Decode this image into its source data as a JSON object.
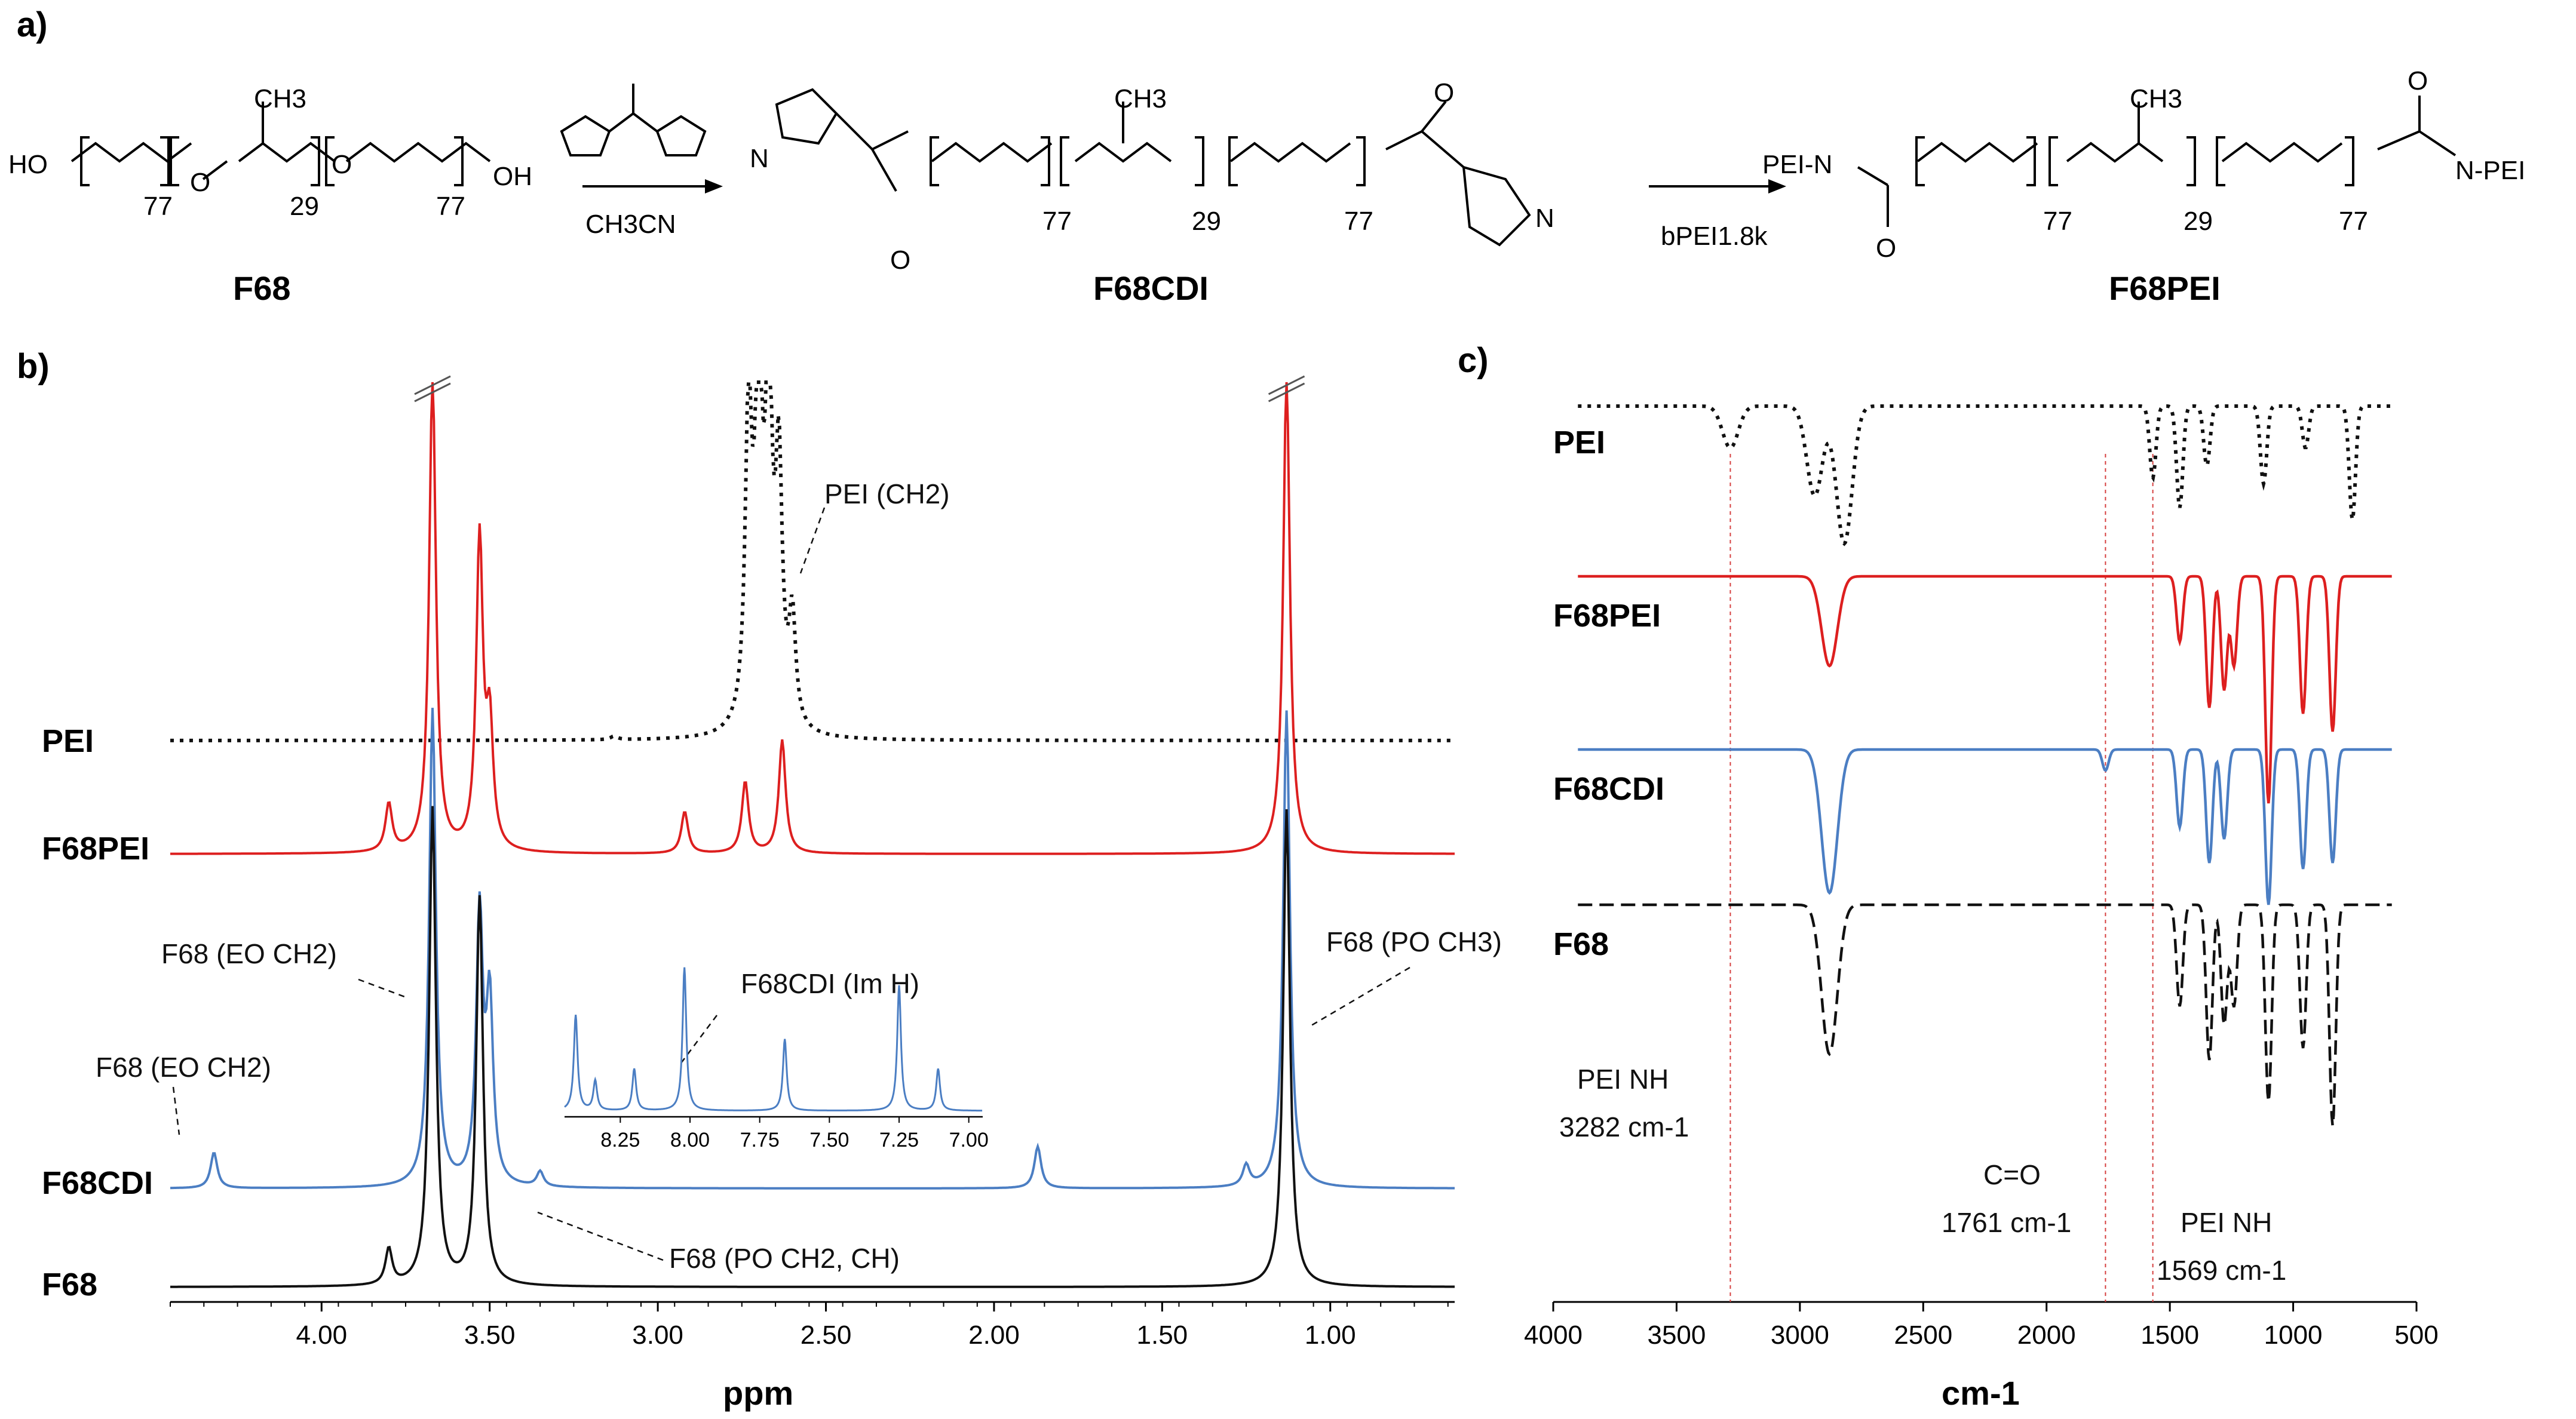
{
  "panels": {
    "a": "a)",
    "b": "b)",
    "c": "c)"
  },
  "scheme": {
    "compounds": [
      "F68",
      "F68CDI",
      "F68PEI"
    ],
    "reagent1": "CH3CN",
    "reagent2": "bPEI1.8k",
    "repeat_eo": "77",
    "repeat_po": "29",
    "groups": {
      "ho": "HO",
      "oh": "OH",
      "pei_n_left": "PEI-N",
      "n_pei_right": "N-PEI",
      "n": "N",
      "o": "O",
      "ch3": "CH3"
    }
  },
  "chart_data": [
    {
      "type": "line",
      "panel": "b",
      "xlabel": "ppm",
      "xlim": [
        4.45,
        0.63
      ],
      "ticks": [
        "4.00",
        "3.50",
        "3.00",
        "2.50",
        "2.00",
        "1.50",
        "1.00"
      ],
      "series": [
        {
          "name": "PEI",
          "color": "#111111",
          "dash": "dotted",
          "peaks": [
            [
              2.73,
              520
            ],
            [
              2.7,
              610
            ],
            [
              2.67,
              570
            ],
            [
              2.64,
              420
            ],
            [
              2.6,
              180
            ],
            [
              3.13,
              6
            ]
          ]
        },
        {
          "name": "F68PEI",
          "color": "#dd1f1f",
          "dash": "solid",
          "peaks": [
            [
              3.67,
              800
            ],
            [
              3.53,
              520
            ],
            [
              3.5,
              200
            ],
            [
              3.8,
              80
            ],
            [
              2.63,
              190
            ],
            [
              2.74,
              120
            ],
            [
              2.92,
              70
            ],
            [
              1.13,
              800
            ]
          ]
        },
        {
          "name": "F68CDI",
          "color": "#4b7ec3",
          "dash": "solid",
          "peaks": [
            [
              3.67,
              800
            ],
            [
              3.53,
              450
            ],
            [
              3.5,
              300
            ],
            [
              4.32,
              60
            ],
            [
              3.35,
              25
            ],
            [
              1.25,
              35
            ],
            [
              1.13,
              800
            ],
            [
              1.87,
              70
            ]
          ]
        },
        {
          "name": "F68",
          "color": "#111111",
          "dash": "solid",
          "peaks": [
            [
              3.67,
              800
            ],
            [
              3.53,
              650
            ],
            [
              3.8,
              60
            ],
            [
              1.13,
              800
            ]
          ]
        }
      ],
      "annotations": [
        "PEI (CH2)",
        "F68 (EO CH2)",
        "F68 (EO CH2)",
        "F68CDI (Im H)",
        "F68 (PO CH3)",
        "F68 (PO CH2, CH)"
      ],
      "inset": {
        "ticks": [
          "8.25",
          "8.00",
          "7.75",
          "7.50",
          "7.25",
          "7.00"
        ],
        "xlim": [
          8.45,
          6.95
        ],
        "peaks": [
          [
            8.41,
            160
          ],
          [
            8.34,
            50
          ],
          [
            8.2,
            70
          ],
          [
            8.02,
            240
          ],
          [
            7.66,
            120
          ],
          [
            7.25,
            210
          ],
          [
            7.11,
            70
          ]
        ]
      }
    },
    {
      "type": "line",
      "panel": "c",
      "xlabel": "cm-1",
      "xlim": [
        4000,
        500
      ],
      "ticks": [
        "4000",
        "3500",
        "3000",
        "2500",
        "2000",
        "1500",
        "1000",
        "500"
      ],
      "series": [
        {
          "name": "PEI",
          "color": "#111111",
          "dash": "dotted",
          "bands": [
            [
              3282,
              70
            ],
            [
              2940,
              150
            ],
            [
              2820,
              230
            ],
            [
              1569,
              120
            ],
            [
              1460,
              170
            ],
            [
              1350,
              100
            ],
            [
              1120,
              130
            ],
            [
              950,
              70
            ],
            [
              760,
              190
            ]
          ]
        },
        {
          "name": "F68PEI",
          "color": "#dd1f1f",
          "dash": "solid",
          "bands": [
            [
              2880,
              150
            ],
            [
              1460,
              110
            ],
            [
              1340,
              220
            ],
            [
              1280,
              190
            ],
            [
              1240,
              150
            ],
            [
              1100,
              380
            ],
            [
              960,
              230
            ],
            [
              840,
              260
            ]
          ]
        },
        {
          "name": "F68CDI",
          "color": "#4b7ec3",
          "dash": "solid",
          "bands": [
            [
              2880,
              240
            ],
            [
              1761,
              35
            ],
            [
              1460,
              130
            ],
            [
              1340,
              190
            ],
            [
              1280,
              150
            ],
            [
              1100,
              260
            ],
            [
              960,
              200
            ],
            [
              840,
              190
            ]
          ]
        },
        {
          "name": "F68",
          "color": "#111111",
          "dash": "dashed",
          "bands": [
            [
              2880,
              250
            ],
            [
              1460,
              170
            ],
            [
              1340,
              260
            ],
            [
              1280,
              200
            ],
            [
              1240,
              170
            ],
            [
              1100,
              330
            ],
            [
              960,
              240
            ],
            [
              840,
              370
            ]
          ]
        }
      ],
      "reference_lines": [
        3282,
        1761,
        1569
      ],
      "annotations": {
        "pei_nh_3282_name": "PEI NH",
        "pei_nh_3282_value": "3282 cm-1",
        "co_name": "C=O",
        "co_value": "1761 cm-1",
        "pei_nh_1569_name": "PEI NH",
        "pei_nh_1569_value": "1569 cm-1"
      }
    }
  ],
  "colors": {
    "red": "#dd1f1f",
    "blue": "#4b7ec3",
    "black": "#111111",
    "refline": "#d64040"
  }
}
